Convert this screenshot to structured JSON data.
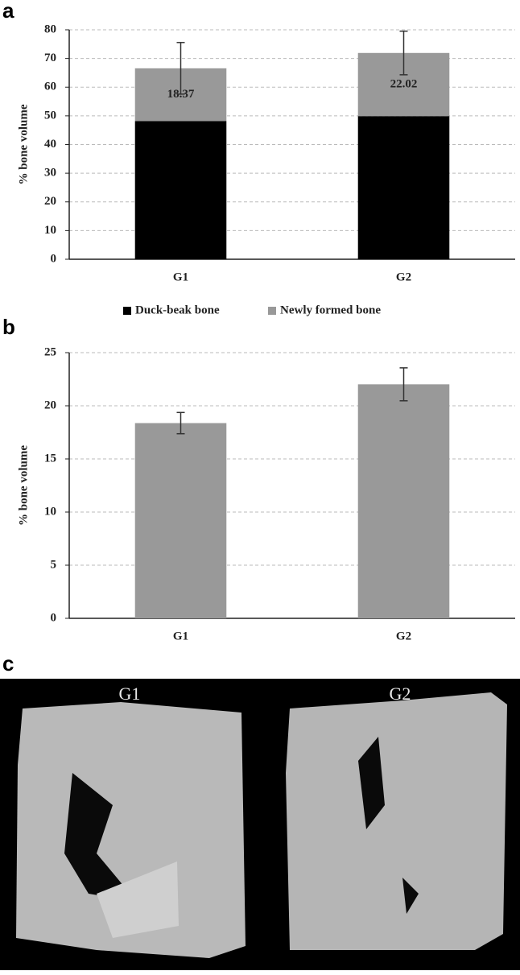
{
  "chart_data": [
    {
      "type": "stacked_bar",
      "panel_label": "a",
      "y_label": "% bone volume",
      "categories": [
        "G1",
        "G2"
      ],
      "series": [
        {
          "name": "Duck-beak bone",
          "color": "#000000",
          "values": [
            48.2,
            49.9
          ]
        },
        {
          "name": "Newly formed bone",
          "color": "#999999",
          "values": [
            18.37,
            22.02
          ],
          "errors": [
            9,
            7.6
          ],
          "show_values": true
        }
      ],
      "ylim": [
        0,
        80
      ],
      "yticks": [
        0,
        10,
        20,
        30,
        40,
        50,
        60,
        70,
        80
      ],
      "grid": true,
      "legend": "bottom"
    },
    {
      "type": "bar",
      "panel_label": "b",
      "y_label": "% bone volume",
      "categories": [
        "G1",
        "G2"
      ],
      "values": [
        18.37,
        22.02
      ],
      "errors": [
        1,
        1.55
      ],
      "color": "#999999",
      "ylim": [
        0,
        25
      ],
      "yticks": [
        0,
        5,
        10,
        15,
        20,
        25
      ],
      "grid": true
    }
  ],
  "image_panel": {
    "label": "c",
    "captions": [
      "G1",
      "G2"
    ]
  }
}
